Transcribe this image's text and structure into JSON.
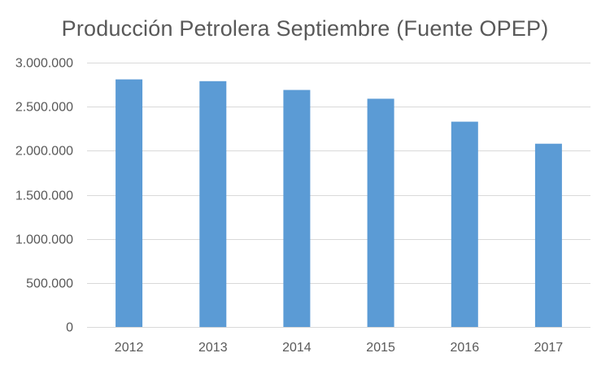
{
  "chart_data": {
    "type": "bar",
    "title": "Producción Petrolera Septiembre (Fuente OPEP)",
    "categories": [
      "2012",
      "2013",
      "2014",
      "2015",
      "2016",
      "2017"
    ],
    "values": [
      2810000,
      2790000,
      2690000,
      2590000,
      2330000,
      2080000
    ],
    "ylim": [
      0,
      3000000
    ],
    "yticks": [
      0,
      500000,
      1000000,
      1500000,
      2000000,
      2500000,
      3000000
    ],
    "ytick_labels": [
      "0",
      "500.000",
      "1.000.000",
      "1.500.000",
      "2.000.000",
      "2.500.000",
      "3.000.000"
    ],
    "xlabel": "",
    "ylabel": "",
    "grid": true,
    "legend": "none",
    "colors": {
      "bar": "#5B9BD5",
      "grid": "#D9D9D9",
      "text": "#595959"
    }
  }
}
